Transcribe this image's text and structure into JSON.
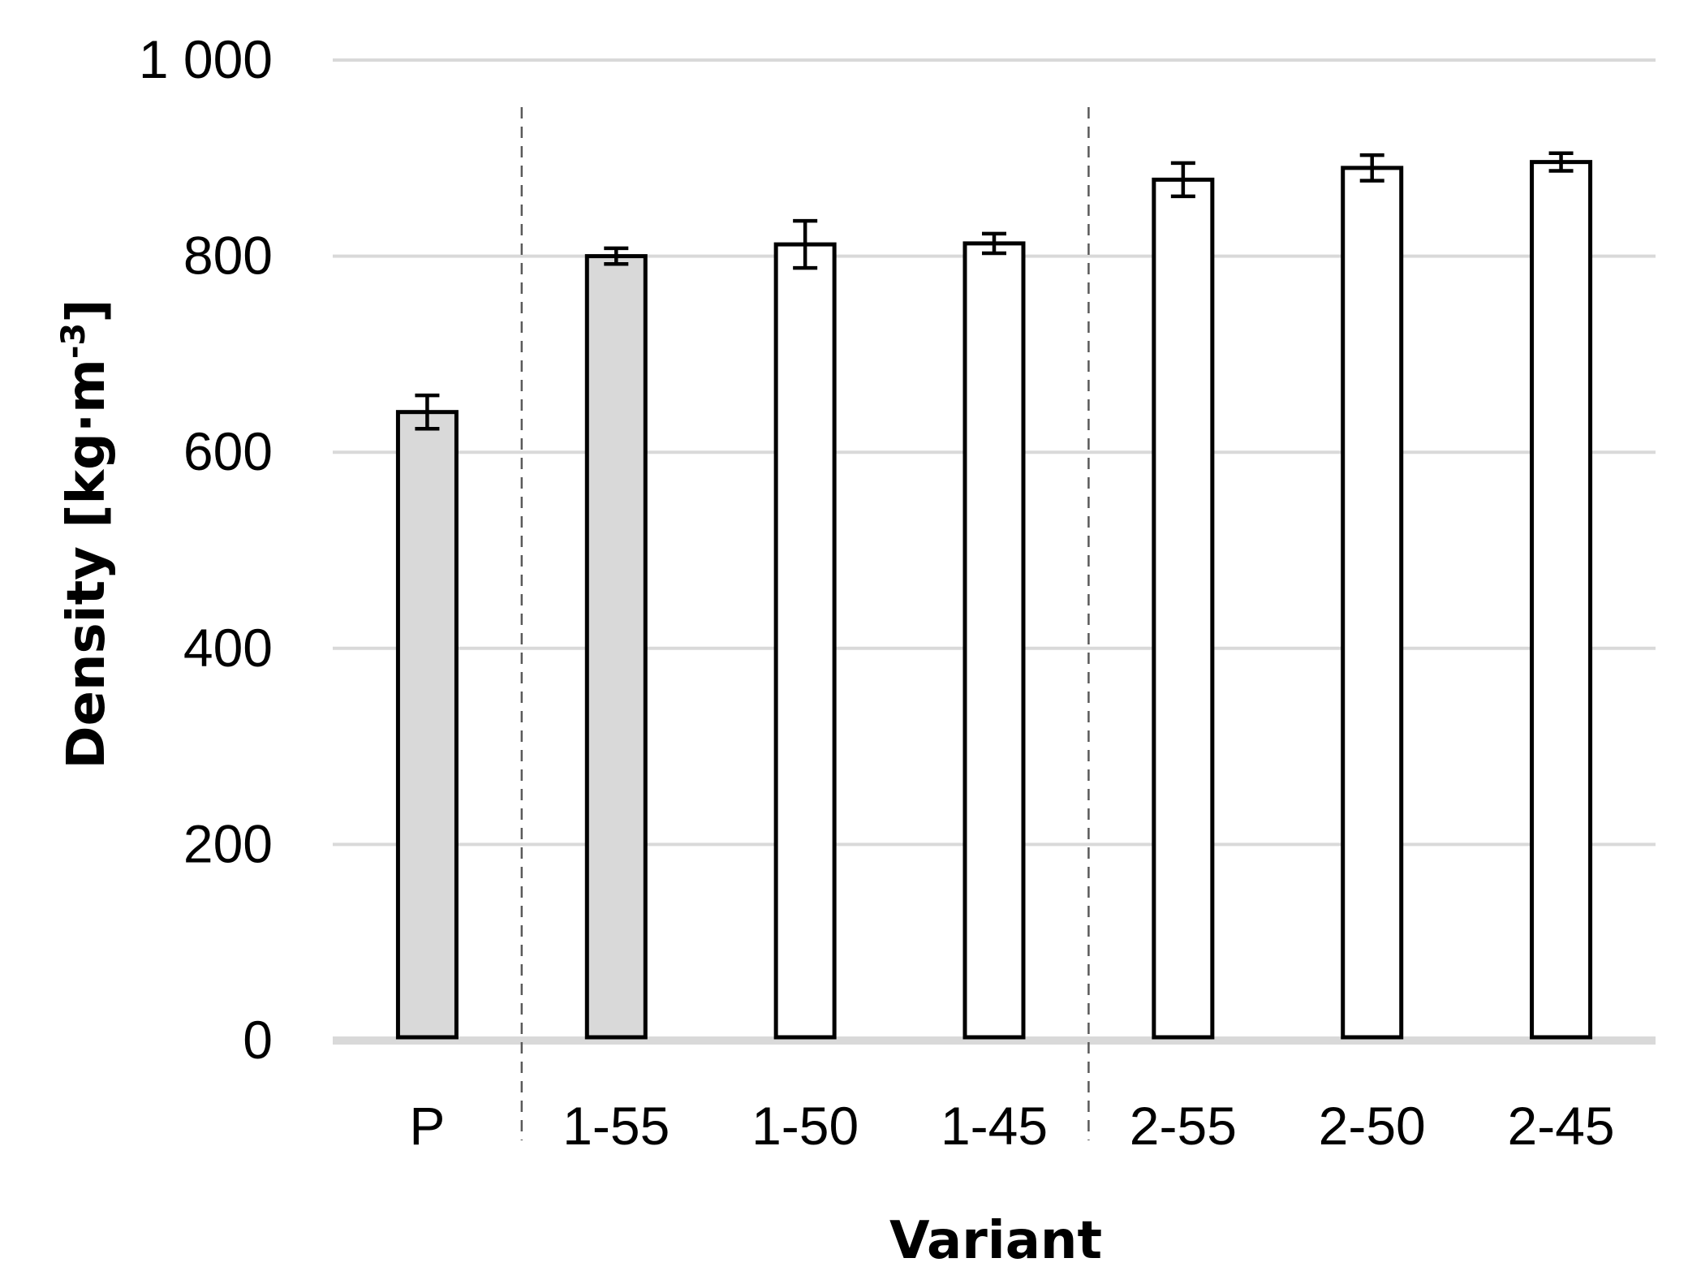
{
  "chart_data": {
    "type": "bar",
    "xlabel": "Variant",
    "ylabel": "Density [kg·m",
    "ylabel_superscript": "-3",
    "ylabel_suffix": "]",
    "ylim": [
      0,
      1000
    ],
    "yticks": [
      0,
      200,
      400,
      600,
      800,
      1000
    ],
    "ytick_labels": [
      "0",
      "200",
      "400",
      "600",
      "800",
      "1 000"
    ],
    "grid": true,
    "legend": "none",
    "categories": [
      "P",
      "1-55",
      "1-50",
      "1-45",
      "2-55",
      "2-50",
      "2-45"
    ],
    "values": [
      641,
      800,
      812,
      813,
      878,
      890,
      896
    ],
    "errors": [
      17,
      8,
      24,
      10,
      17,
      13,
      9
    ],
    "bar_fills": [
      "#d9d9d9",
      "#d9d9d9",
      "#ffffff",
      "#ffffff",
      "#ffffff",
      "#ffffff",
      "#ffffff"
    ],
    "group_separators_after": [
      "P",
      "1-45"
    ],
    "colors": {
      "grid": "#d9d9d9",
      "bar_stroke": "#000000",
      "separator": "#595959"
    }
  }
}
